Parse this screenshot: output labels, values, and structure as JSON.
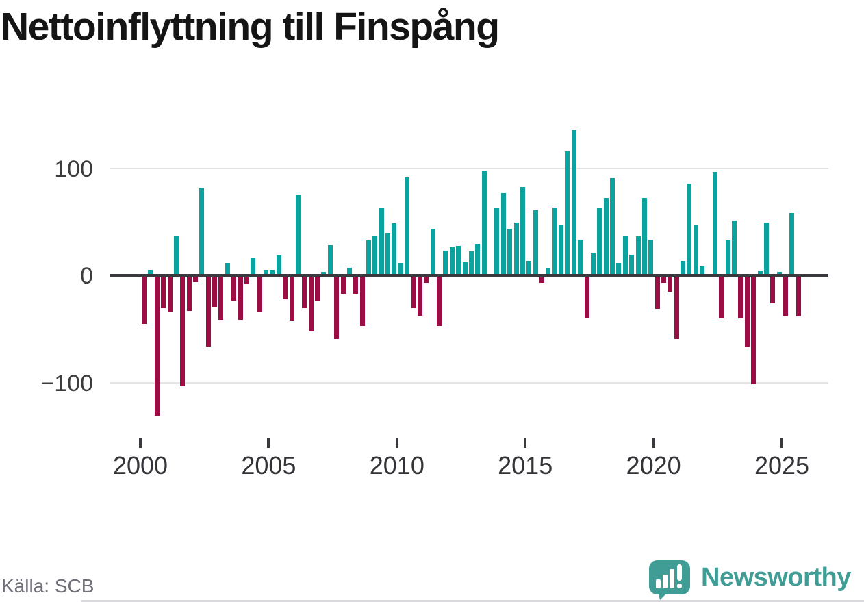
{
  "title": "Nettoinflyttning till Finspång",
  "source": "Källa: SCB",
  "branding": {
    "name": "Newsworthy",
    "logo_icon": "speech-bubble-bar-chart-icon"
  },
  "colors": {
    "positive": "#0aa39d",
    "negative": "#9c0c45",
    "axis": "#3a3a3e",
    "gridline": "#e4e4e6",
    "brand_teal": "#3f9d96"
  },
  "chart_data": {
    "type": "bar",
    "title": "Nettoinflyttning till Finspång",
    "x_unit": "quarter",
    "range": "2000 Q1 – 2025 Q3",
    "legend": "none",
    "grid": "horizontal gridlines at 100 and -100; dark zero axis line",
    "ylim": [
      -135,
      140
    ],
    "y_tick_labels": [
      "100",
      "0",
      "−100"
    ],
    "y_tick_values": [
      100,
      0,
      -100
    ],
    "x_ticks": [
      "2000",
      "2005",
      "2010",
      "2015",
      "2020",
      "2025"
    ],
    "series_name": "Nettoinflyttning",
    "data_by_year": [
      {
        "year": 2000,
        "values": [
          -44,
          4,
          -129,
          -29
        ]
      },
      {
        "year": 2001,
        "values": [
          -33,
          36,
          -102,
          -32
        ]
      },
      {
        "year": 2002,
        "values": [
          -5,
          80,
          -65,
          -28
        ]
      },
      {
        "year": 2003,
        "values": [
          -40,
          10,
          -22,
          -40
        ]
      },
      {
        "year": 2004,
        "values": [
          -7,
          15,
          -33,
          4
        ]
      },
      {
        "year": 2005,
        "values": [
          4,
          17,
          -21,
          -41
        ]
      },
      {
        "year": 2006,
        "values": [
          73,
          -29,
          -51,
          -23
        ]
      },
      {
        "year": 2007,
        "values": [
          2,
          27,
          -58,
          -16
        ]
      },
      {
        "year": 2008,
        "values": [
          6,
          -16,
          -46,
          31
        ]
      },
      {
        "year": 2009,
        "values": [
          36,
          61,
          38,
          47
        ]
      },
      {
        "year": 2010,
        "values": [
          10,
          90,
          -29,
          -36
        ]
      },
      {
        "year": 2011,
        "values": [
          -6,
          42,
          -46,
          22
        ]
      },
      {
        "year": 2012,
        "values": [
          25,
          26,
          11,
          21
        ]
      },
      {
        "year": 2013,
        "values": [
          28,
          96,
          0,
          61
        ]
      },
      {
        "year": 2014,
        "values": [
          75,
          42,
          48,
          81
        ]
      },
      {
        "year": 2015,
        "values": [
          12,
          59,
          -6,
          5
        ]
      },
      {
        "year": 2016,
        "values": [
          62,
          46,
          114,
          134
        ]
      },
      {
        "year": 2017,
        "values": [
          32,
          -38,
          20,
          61
        ]
      },
      {
        "year": 2018,
        "values": [
          71,
          89,
          10,
          36
        ]
      },
      {
        "year": 2019,
        "values": [
          18,
          35,
          71,
          32
        ]
      },
      {
        "year": 2020,
        "values": [
          -30,
          -6,
          -14,
          -58
        ]
      },
      {
        "year": 2021,
        "values": [
          12,
          84,
          46,
          7
        ]
      },
      {
        "year": 2022,
        "values": [
          0,
          95,
          -39,
          31
        ]
      },
      {
        "year": 2023,
        "values": [
          50,
          -39,
          -65,
          -100
        ]
      },
      {
        "year": 2024,
        "values": [
          3,
          48,
          -25,
          2
        ]
      },
      {
        "year": 2025,
        "values": [
          -37,
          57,
          -37
        ]
      }
    ]
  }
}
